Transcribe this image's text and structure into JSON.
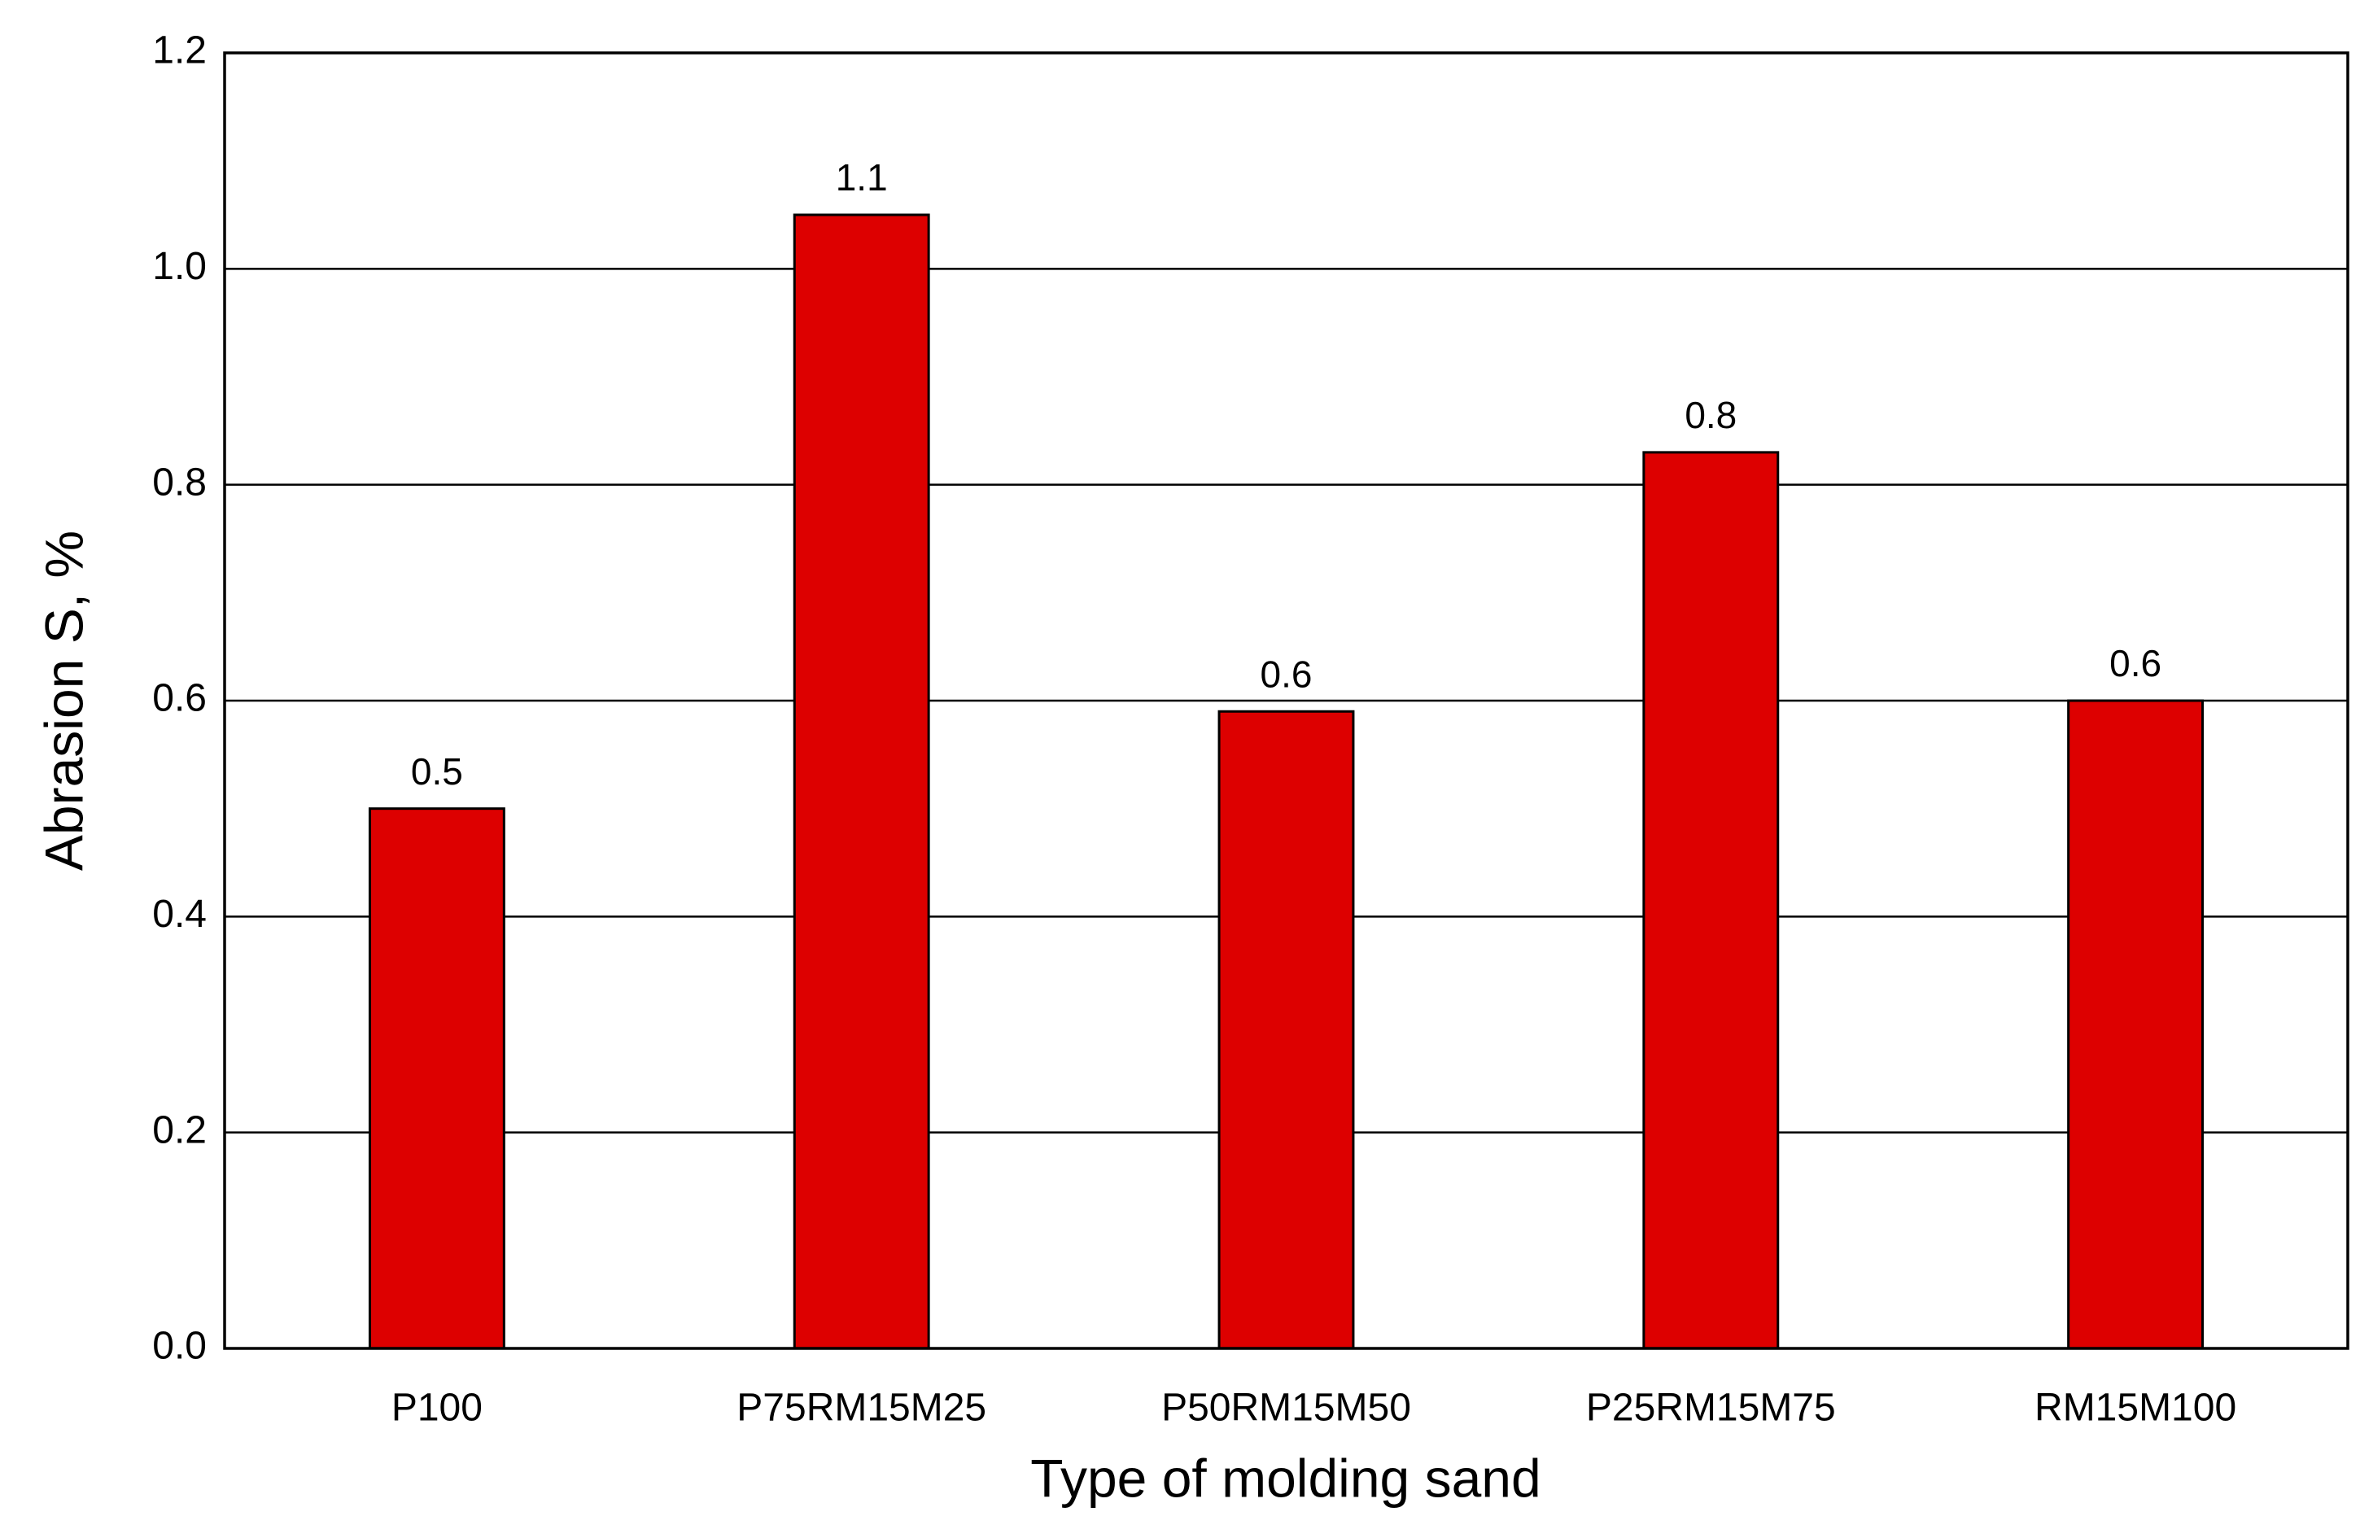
{
  "chart_data": {
    "type": "bar",
    "x_label": "Type of molding sand",
    "y_label": "Abrasion S, %",
    "categories": [
      "P100",
      "P75RM15M25",
      "P50RM15M50",
      "P25RM15M75",
      "RM15M100"
    ],
    "values": [
      0.5,
      1.05,
      0.59,
      0.83,
      0.6
    ],
    "value_labels": [
      "0.5",
      "1.1",
      "0.6",
      "0.8",
      "0.6"
    ],
    "color": "#dd0000",
    "ylim": [
      0,
      1.2
    ],
    "yticks": [
      {
        "value": 0,
        "label": "0.0"
      },
      0.2,
      0.4,
      0.6,
      0.8,
      {
        "value": 1,
        "label": "1.0"
      },
      1.2
    ],
    "grid": true
  }
}
